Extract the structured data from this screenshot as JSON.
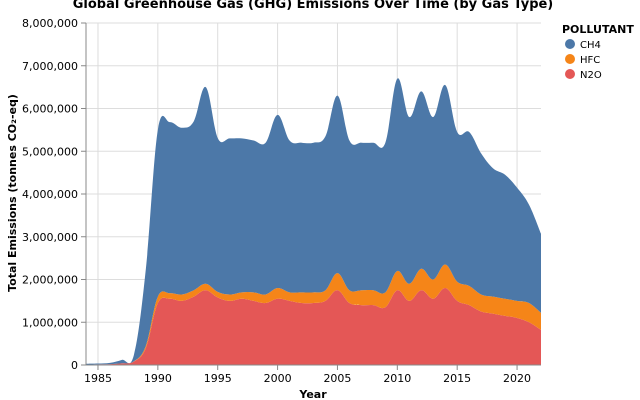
{
  "chart_data": {
    "type": "area",
    "stacked": true,
    "title": "Global Greenhouse Gas (GHG) Emissions Over Time (by Gas Type)",
    "xlabel": "Year",
    "ylabel": "Total Emissions (tonnes CO₂-eq)",
    "xlim": [
      1984,
      2022
    ],
    "ylim": [
      0,
      8000000
    ],
    "x_ticks": [
      1985,
      1990,
      1995,
      2000,
      2005,
      2010,
      2015,
      2020
    ],
    "y_ticks": [
      0,
      1000000,
      2000000,
      3000000,
      4000000,
      5000000,
      6000000,
      7000000,
      8000000
    ],
    "y_tick_labels": [
      "0",
      "1,000,000",
      "2,000,000",
      "3,000,000",
      "4,000,000",
      "5,000,000",
      "6,000,000",
      "7,000,000",
      "8,000,000"
    ],
    "grid": true,
    "legend": {
      "title": "POLLUTANT",
      "position": "top-right"
    },
    "x": [
      1984,
      1985,
      1986,
      1987,
      1988,
      1989,
      1990,
      1991,
      1992,
      1993,
      1994,
      1995,
      1996,
      1997,
      1998,
      1999,
      2000,
      2001,
      2002,
      2003,
      2004,
      2005,
      2006,
      2007,
      2008,
      2009,
      2010,
      2011,
      2012,
      2013,
      2014,
      2015,
      2016,
      2017,
      2018,
      2019,
      2020,
      2021,
      2022
    ],
    "series": [
      {
        "name": "N2O",
        "color": "#e45756",
        "values": [
          10000,
          15000,
          20000,
          40000,
          80000,
          400000,
          1450000,
          1550000,
          1500000,
          1600000,
          1750000,
          1580000,
          1500000,
          1550000,
          1500000,
          1450000,
          1550000,
          1500000,
          1450000,
          1450000,
          1500000,
          1750000,
          1450000,
          1400000,
          1400000,
          1350000,
          1750000,
          1500000,
          1750000,
          1550000,
          1800000,
          1500000,
          1400000,
          1250000,
          1200000,
          1150000,
          1100000,
          1000000,
          820000
        ]
      },
      {
        "name": "HFC",
        "color": "#f58518",
        "values": [
          0,
          0,
          0,
          0,
          5000,
          50000,
          150000,
          130000,
          150000,
          150000,
          150000,
          130000,
          150000,
          150000,
          200000,
          200000,
          250000,
          200000,
          250000,
          250000,
          250000,
          400000,
          300000,
          350000,
          350000,
          350000,
          450000,
          400000,
          500000,
          450000,
          550000,
          450000,
          450000,
          400000,
          400000,
          400000,
          400000,
          450000,
          400000
        ]
      },
      {
        "name": "CH4",
        "color": "#4c78a8",
        "values": [
          20000,
          20000,
          30000,
          80000,
          150000,
          1800000,
          3900000,
          4000000,
          3900000,
          3950000,
          4600000,
          3600000,
          3650000,
          3600000,
          3550000,
          3550000,
          4050000,
          3550000,
          3500000,
          3500000,
          3600000,
          4150000,
          3500000,
          3450000,
          3450000,
          3500000,
          4500000,
          3900000,
          4150000,
          3800000,
          4200000,
          3500000,
          3600000,
          3300000,
          3000000,
          2900000,
          2650000,
          2300000,
          1850000
        ]
      }
    ]
  }
}
